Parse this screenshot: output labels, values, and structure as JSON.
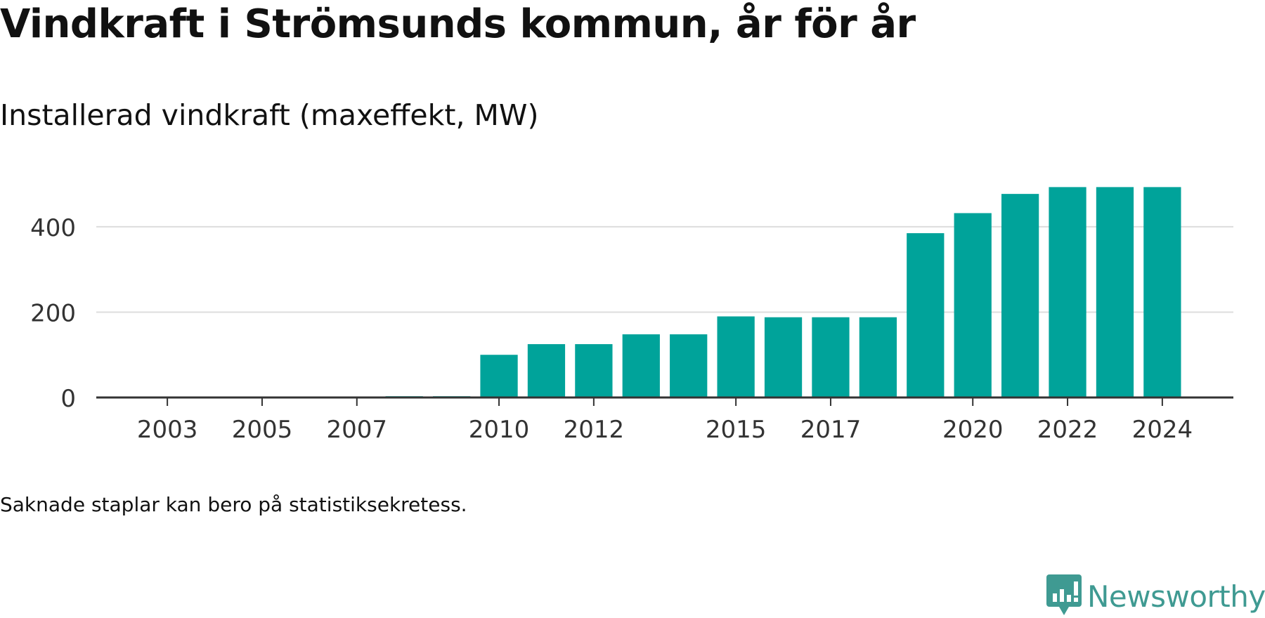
{
  "header": {
    "title": "Vindkraft i Strömsunds kommun, år för år",
    "subtitle": "Installerad vindkraft (maxeffekt, MW)"
  },
  "footnote": "Saknade staplar kan bero på statistiksekretess.",
  "brand": {
    "name": "Newsworthy",
    "color": "#3f9a92"
  },
  "chart_data": {
    "type": "bar",
    "title": "Vindkraft i Strömsunds kommun, år för år",
    "subtitle": "Installerad vindkraft (maxeffekt, MW)",
    "xlabel": "",
    "ylabel": "",
    "x": [
      2003,
      2004,
      2005,
      2006,
      2007,
      2008,
      2009,
      2010,
      2011,
      2012,
      2013,
      2014,
      2015,
      2016,
      2017,
      2018,
      2019,
      2020,
      2021,
      2022,
      2023,
      2024
    ],
    "values": [
      0,
      0,
      0,
      0,
      0,
      3,
      3,
      100,
      125,
      125,
      148,
      148,
      190,
      188,
      188,
      188,
      385,
      432,
      477,
      493,
      493,
      493
    ],
    "xlim": [
      2001.5,
      2025.5
    ],
    "ylim": [
      0,
      520
    ],
    "x_ticks": [
      2003,
      2005,
      2007,
      2010,
      2012,
      2015,
      2017,
      2020,
      2022,
      2024
    ],
    "y_ticks": [
      0,
      200,
      400
    ],
    "bar_color": "#00a39a",
    "grid": true,
    "legend": "none"
  }
}
